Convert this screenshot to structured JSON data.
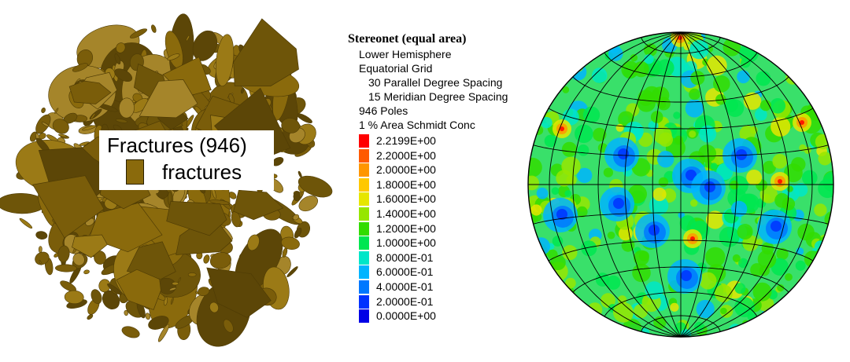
{
  "legend": {
    "title": "Fractures (946)",
    "label": "fractures",
    "swatch_color": "#8a6a0c"
  },
  "stereonet": {
    "title": "Stereonet (equal area)",
    "hemisphere": "Lower Hemisphere",
    "grid": "Equatorial Grid",
    "parallel_spacing": "30 Parallel Degree Spacing",
    "meridian_spacing": "15 Meridian Degree Spacing",
    "poles": "946 Poles",
    "concentration": "1 % Area Schmidt Conc"
  },
  "colorbar": [
    {
      "label": "2.2199E+00",
      "color": "#ff0000"
    },
    {
      "label": "2.2000E+00",
      "color": "#ff5a00"
    },
    {
      "label": "2.0000E+00",
      "color": "#ff9600"
    },
    {
      "label": "1.8000E+00",
      "color": "#ffc800"
    },
    {
      "label": "1.6000E+00",
      "color": "#e6e600"
    },
    {
      "label": "1.4000E+00",
      "color": "#96e600"
    },
    {
      "label": "1.2000E+00",
      "color": "#32dc00"
    },
    {
      "label": "1.0000E+00",
      "color": "#00e650"
    },
    {
      "label": "8.0000E-01",
      "color": "#00e6c8"
    },
    {
      "label": "6.0000E-01",
      "color": "#00b4ff"
    },
    {
      "label": "4.0000E-01",
      "color": "#0078ff"
    },
    {
      "label": "2.0000E-01",
      "color": "#0032ff"
    },
    {
      "label": "0.0000E+00",
      "color": "#0000e6"
    }
  ],
  "colors": {
    "fracture_fill": "#8a6a0c",
    "fracture_dark": "#4f3c05",
    "net_background": "#39e06a"
  }
}
